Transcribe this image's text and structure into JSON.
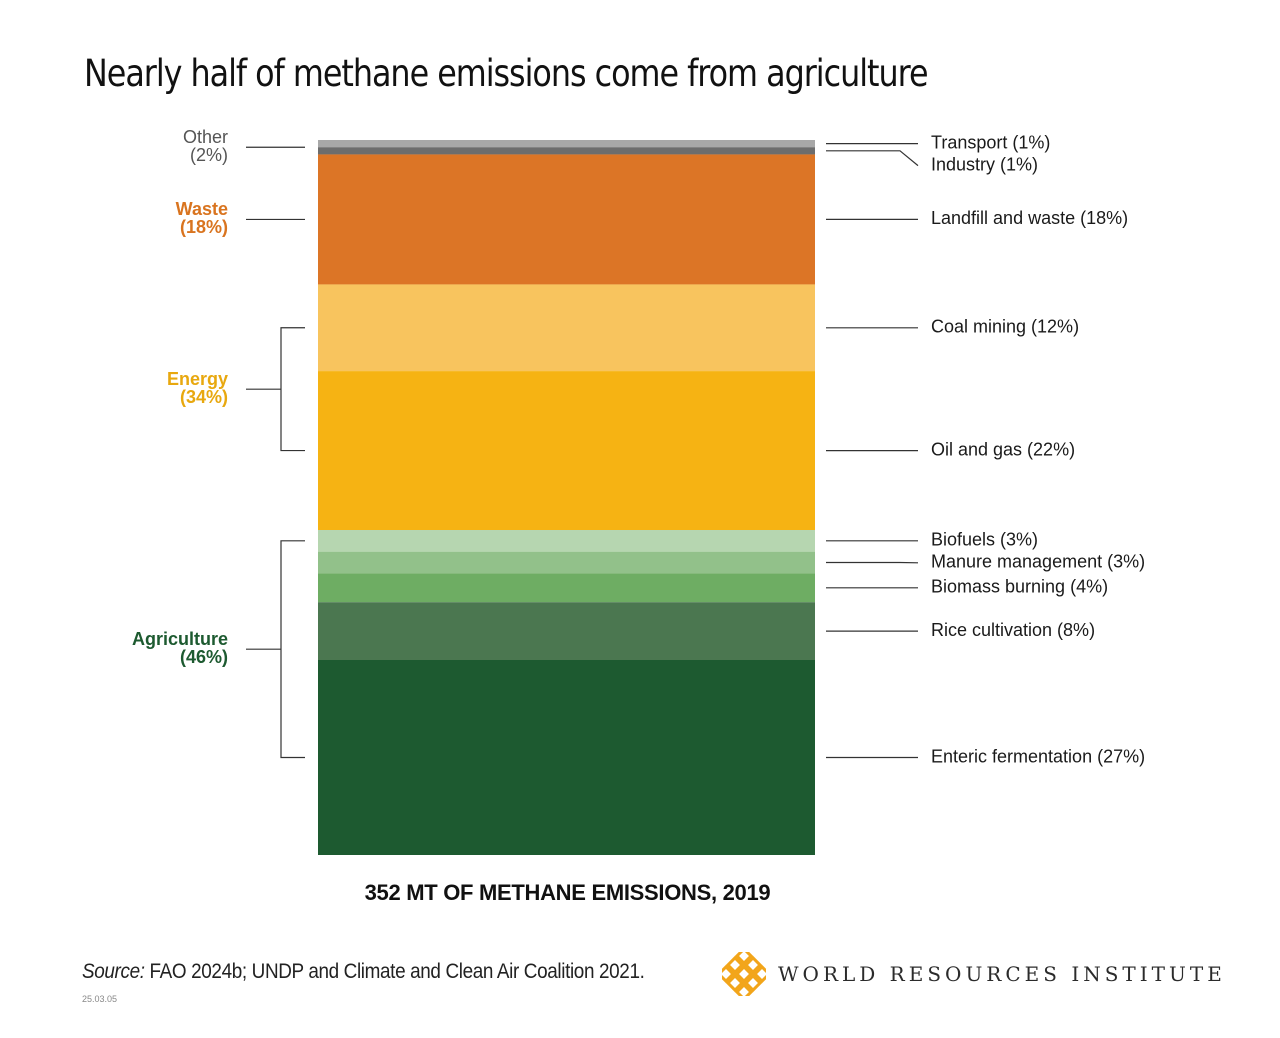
{
  "title": "Nearly half of methane emissions come from agriculture",
  "chart_data": {
    "type": "bar",
    "stacked": true,
    "xlabel": "352 MT OF METHANE EMISSIONS, 2019",
    "unit": "%",
    "total_mt": 352,
    "year": 2019,
    "series": [
      {
        "name": "Transport",
        "label": "Transport (1%)",
        "value": 1,
        "color": "#a8a8a8",
        "group": 0
      },
      {
        "name": "Industry",
        "label": "Industry (1%)",
        "value": 1,
        "color": "#6d6d6d",
        "group": 0
      },
      {
        "name": "Landfill and waste",
        "label": "Landfill and waste (18%)",
        "value": 18,
        "color": "#dc7526",
        "group": 1
      },
      {
        "name": "Coal mining",
        "label": "Coal mining (12%)",
        "value": 12,
        "color": "#f8c45e",
        "group": 2
      },
      {
        "name": "Oil and gas",
        "label": "Oil and gas (22%)",
        "value": 22,
        "color": "#f6b313",
        "group": 2
      },
      {
        "name": "Biofuels",
        "label": "Biofuels (3%)",
        "value": 3,
        "color": "#b6d6b0",
        "group": 3
      },
      {
        "name": "Manure management",
        "label": "Manure management (3%)",
        "value": 3,
        "color": "#92c18a",
        "group": 3
      },
      {
        "name": "Biomass burning",
        "label": "Biomass burning (4%)",
        "value": 4,
        "color": "#6ead63",
        "group": 3
      },
      {
        "name": "Rice cultivation",
        "label": "Rice cultivation (8%)",
        "value": 8,
        "color": "#4b7750",
        "group": 3
      },
      {
        "name": "Enteric fermentation",
        "label": "Enteric fermentation (27%)",
        "value": 27,
        "color": "#1d5a30",
        "group": 3
      }
    ],
    "groups": [
      {
        "name": "Other",
        "pct": "(2%)",
        "value": 2,
        "color": "#555555"
      },
      {
        "name": "Waste",
        "pct": "(18%)",
        "value": 18,
        "color": "#d9741f"
      },
      {
        "name": "Energy",
        "pct": "(34%)",
        "value": 34,
        "color": "#e8a80f"
      },
      {
        "name": "Agriculture",
        "pct": "(46%)",
        "value": 46,
        "color": "#1d5a30"
      }
    ]
  },
  "footer": {
    "source_prefix": "Source:",
    "source_text": " FAO 2024b; UNDP and Climate and Clean Air Coalition 2021.",
    "date": "25.03.05",
    "organization": "WORLD RESOURCES INSTITUTE",
    "logo_icon": "wri-lattice-logo-icon",
    "logo_color": "#f2a51a"
  }
}
